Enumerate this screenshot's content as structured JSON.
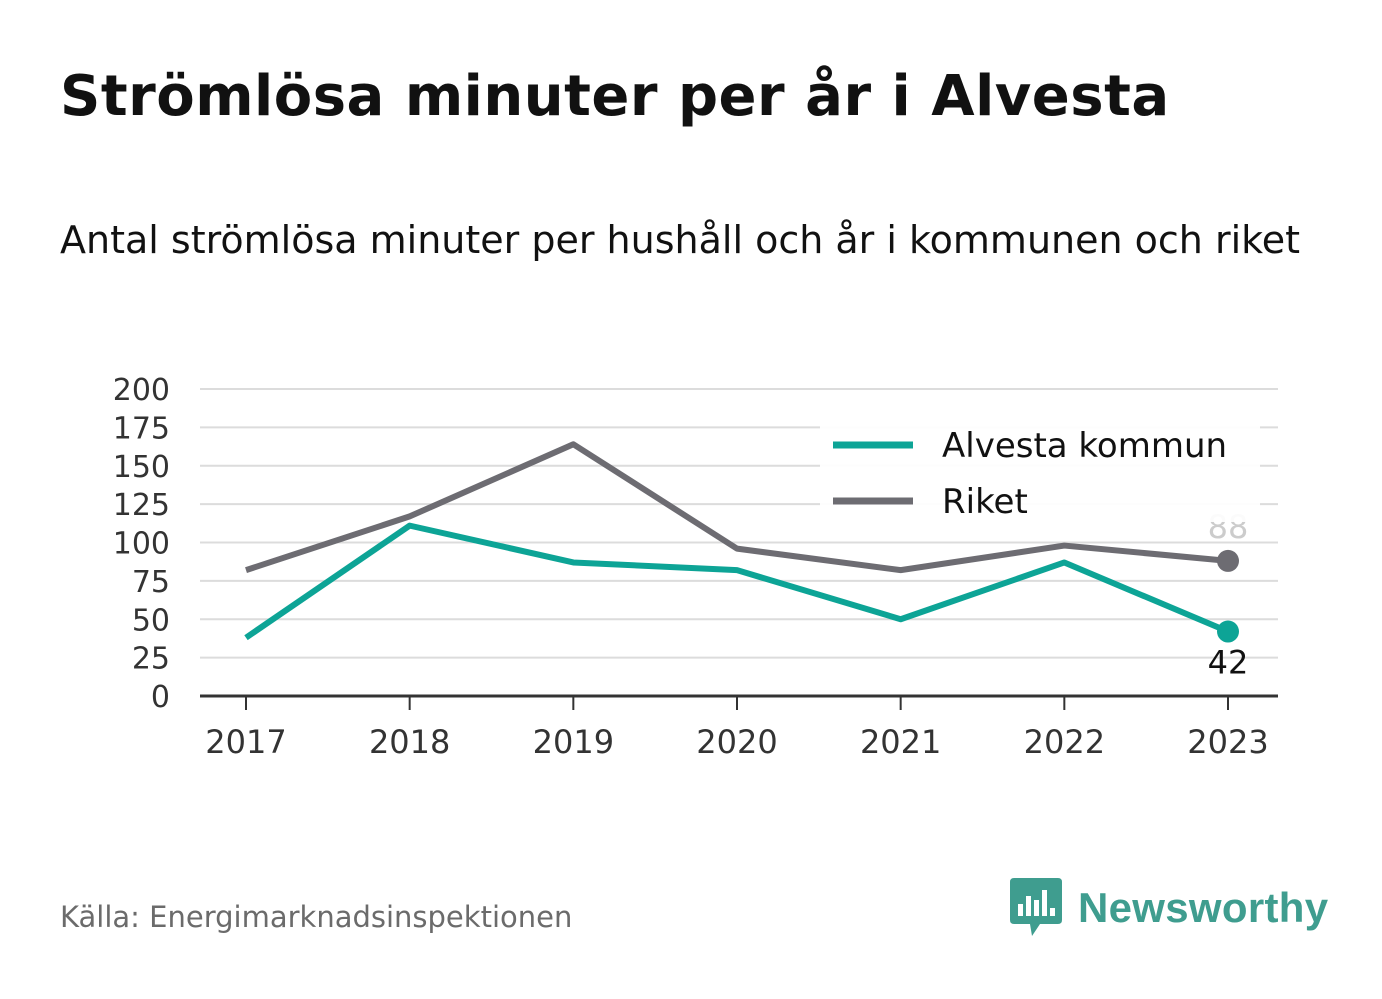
{
  "title": "Strömlösa minuter per år i Alvesta",
  "subtitle": "Antal strömlösa minuter per hushåll och år i kommunen och riket",
  "source": "Källa: Energimarknadsinspektionen",
  "logo": {
    "text": "Newsworthy",
    "icon": "newsworthy-chat-bars-icon",
    "color": "#3f9d8f"
  },
  "colors": {
    "alvesta": "#0da496",
    "riket": "#6d6c72",
    "grid": "#dcdcdc",
    "axis": "#333333",
    "label_riket_end": "#cccccc",
    "label_alvesta_end": "#111111"
  },
  "chart_data": {
    "type": "line",
    "title": "Strömlösa minuter per år i Alvesta",
    "subtitle": "Antal strömlösa minuter per hushåll och år i kommunen och riket",
    "xlabel": "",
    "ylabel": "",
    "x": [
      "2017",
      "2018",
      "2019",
      "2020",
      "2021",
      "2022",
      "2023"
    ],
    "ylim": [
      0,
      200
    ],
    "yticks": [
      "0",
      "25",
      "50",
      "75",
      "100",
      "125",
      "150",
      "175",
      "200"
    ],
    "grid": true,
    "legend_position": "top-right",
    "series": [
      {
        "name": "Alvesta kommun",
        "values": [
          38,
          111,
          87,
          82,
          50,
          87,
          42
        ],
        "end_label": "42"
      },
      {
        "name": "Riket",
        "values": [
          82,
          117,
          164,
          96,
          82,
          98,
          88
        ],
        "end_label": "88"
      }
    ]
  }
}
